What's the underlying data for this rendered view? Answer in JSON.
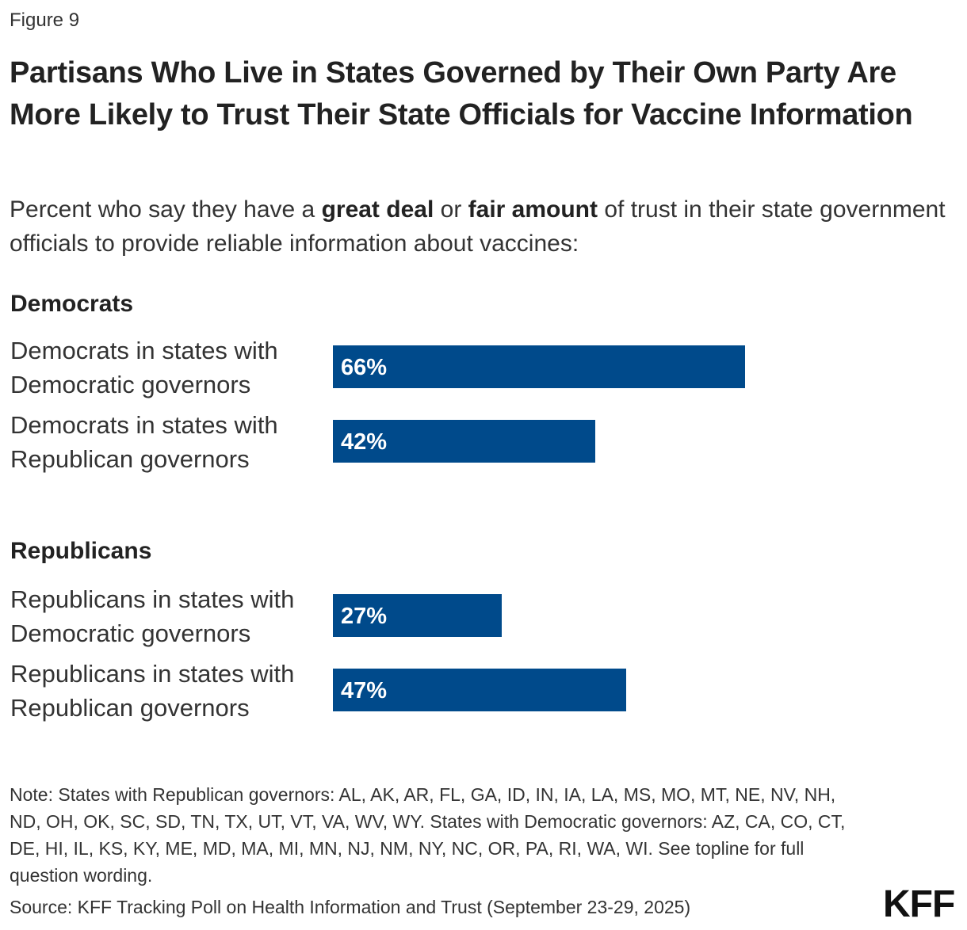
{
  "figure_label": "Figure 9",
  "title": "Partisans Who Live in States Governed by Their Own Party Are More Likely to Trust Their State Officials for Vaccine Information",
  "subtitle": {
    "part1": "Percent who say they have a ",
    "bold1": "great deal",
    "part2": " or ",
    "bold2": "fair amount",
    "part3": " of trust in their state government officials to provide reliable information about vaccines:"
  },
  "chart_data": {
    "type": "bar",
    "orientation": "horizontal",
    "groups": [
      {
        "name": "Democrats",
        "categories": [
          {
            "line1": "Democrats in states with",
            "line2": "Democratic governors",
            "value": 66,
            "label": "66%"
          },
          {
            "line1": "Democrats in states with",
            "line2": "Republican governors",
            "value": 42,
            "label": "42%"
          }
        ]
      },
      {
        "name": "Republicans",
        "categories": [
          {
            "line1": "Republicans in states with",
            "line2": "Democratic governors",
            "value": 27,
            "label": "27%"
          },
          {
            "line1": "Republicans in states with",
            "line2": "Republican governors",
            "value": 47,
            "label": "47%"
          }
        ]
      }
    ],
    "xlim": [
      0,
      100
    ],
    "unit": "%",
    "bar_color": "#004a8b",
    "grid": false
  },
  "note": "Note: States with Republican governors: AL, AK, AR, FL, GA, ID, IN, IA, LA, MS, MO, MT, NE, NV, NH, ND, OH, OK, SC, SD, TN, TX, UT, VT, VA, WV, WY. States with Democratic governors: AZ, CA, CO, CT, DE, HI, IL, KS, KY, ME, MD, MA, MI, MN, NJ, NM, NY, NC, OR, PA, RI, WA, WI. See topline for full question wording.",
  "source": "Source: KFF Tracking Poll on Health Information and Trust (September 23-29, 2025)",
  "logo_text": "KFF"
}
